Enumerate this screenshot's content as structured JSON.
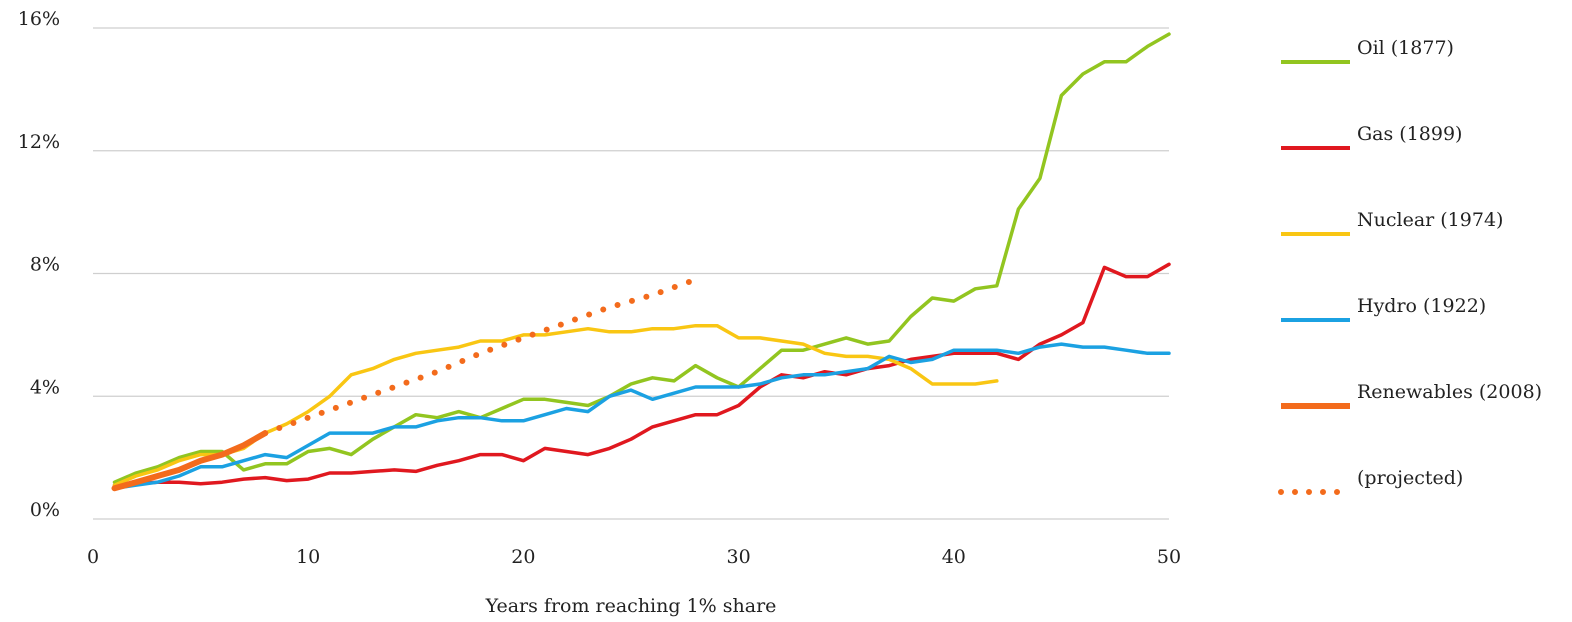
{
  "chart_data": {
    "type": "line",
    "xlabel": "Years from reaching 1% share",
    "ylabel": "",
    "xlim": [
      0,
      50
    ],
    "ylim": [
      0,
      16
    ],
    "x_ticks": [
      "0",
      "10",
      "20",
      "30",
      "40",
      "50"
    ],
    "y_ticks": [
      "0%",
      "4%",
      "8%",
      "12%",
      "16%"
    ],
    "grid": "horizontal",
    "legend_position": "right",
    "series": [
      {
        "name": "Oil (1877)",
        "color": "#92C520",
        "style": "solid",
        "x": [
          1,
          2,
          3,
          4,
          5,
          6,
          7,
          8,
          9,
          10,
          11,
          12,
          13,
          14,
          15,
          16,
          17,
          18,
          19,
          20,
          21,
          22,
          23,
          24,
          25,
          26,
          27,
          28,
          29,
          30,
          31,
          32,
          33,
          34,
          35,
          36,
          37,
          38,
          39,
          40,
          41,
          42,
          43,
          44,
          45,
          46,
          47,
          48,
          49,
          50
        ],
        "y": [
          1.2,
          1.5,
          1.7,
          2.0,
          2.2,
          2.2,
          1.6,
          1.8,
          1.8,
          2.2,
          2.3,
          2.1,
          2.6,
          3.0,
          3.4,
          3.3,
          3.5,
          3.3,
          3.6,
          3.9,
          3.9,
          3.8,
          3.7,
          4.0,
          4.4,
          4.6,
          4.5,
          5.0,
          4.6,
          4.3,
          4.9,
          5.5,
          5.5,
          5.7,
          5.9,
          5.7,
          5.8,
          6.6,
          7.2,
          7.1,
          7.5,
          7.6,
          10.1,
          11.1,
          13.8,
          14.5,
          14.9,
          14.9,
          15.4,
          15.8
        ]
      },
      {
        "name": "Gas (1899)",
        "color": "#E0181F",
        "style": "solid",
        "x": [
          1,
          2,
          3,
          4,
          5,
          6,
          7,
          8,
          9,
          10,
          11,
          12,
          13,
          14,
          15,
          16,
          17,
          18,
          19,
          20,
          21,
          22,
          23,
          24,
          25,
          26,
          27,
          28,
          29,
          30,
          31,
          32,
          33,
          34,
          35,
          36,
          37,
          38,
          39,
          40,
          41,
          42,
          43,
          44,
          45,
          46,
          47,
          48,
          49,
          50
        ],
        "y": [
          1.1,
          1.15,
          1.2,
          1.2,
          1.15,
          1.2,
          1.3,
          1.35,
          1.25,
          1.3,
          1.5,
          1.5,
          1.55,
          1.6,
          1.55,
          1.75,
          1.9,
          2.1,
          2.1,
          1.9,
          2.3,
          2.2,
          2.1,
          2.3,
          2.6,
          3.0,
          3.2,
          3.4,
          3.4,
          3.7,
          4.3,
          4.7,
          4.6,
          4.8,
          4.7,
          4.9,
          5.0,
          5.2,
          5.3,
          5.4,
          5.4,
          5.4,
          5.2,
          5.7,
          6.0,
          6.4,
          8.2,
          7.9,
          7.9,
          8.3
        ]
      },
      {
        "name": "Nuclear (1974)",
        "color": "#F9C613",
        "style": "solid",
        "x": [
          1,
          2,
          3,
          4,
          5,
          6,
          7,
          8,
          9,
          10,
          11,
          12,
          13,
          14,
          15,
          16,
          17,
          18,
          19,
          20,
          21,
          22,
          23,
          24,
          25,
          26,
          27,
          28,
          29,
          30,
          31,
          32,
          33,
          34,
          35,
          36,
          37,
          38,
          39,
          40,
          41,
          42
        ],
        "y": [
          1.1,
          1.4,
          1.6,
          1.9,
          2.1,
          2.1,
          2.3,
          2.8,
          3.1,
          3.5,
          4.0,
          4.7,
          4.9,
          5.2,
          5.4,
          5.5,
          5.6,
          5.8,
          5.8,
          6.0,
          6.0,
          6.1,
          6.2,
          6.1,
          6.1,
          6.2,
          6.2,
          6.3,
          6.3,
          5.9,
          5.9,
          5.8,
          5.7,
          5.4,
          5.3,
          5.3,
          5.2,
          4.9,
          4.4,
          4.4,
          4.4,
          4.5
        ]
      },
      {
        "name": "Hydro (1922)",
        "color": "#1BA1E2",
        "style": "solid",
        "x": [
          1,
          2,
          3,
          4,
          5,
          6,
          7,
          8,
          9,
          10,
          11,
          12,
          13,
          14,
          15,
          16,
          17,
          18,
          19,
          20,
          21,
          22,
          23,
          24,
          25,
          26,
          27,
          28,
          29,
          30,
          31,
          32,
          33,
          34,
          35,
          36,
          37,
          38,
          39,
          40,
          41,
          42,
          43,
          44,
          45,
          46,
          47,
          48,
          49,
          50
        ],
        "y": [
          1.0,
          1.1,
          1.2,
          1.4,
          1.7,
          1.7,
          1.9,
          2.1,
          2.0,
          2.4,
          2.8,
          2.8,
          2.8,
          3.0,
          3.0,
          3.2,
          3.3,
          3.3,
          3.2,
          3.2,
          3.4,
          3.6,
          3.5,
          4.0,
          4.2,
          3.9,
          4.1,
          4.3,
          4.3,
          4.3,
          4.4,
          4.6,
          4.7,
          4.7,
          4.8,
          4.9,
          5.3,
          5.1,
          5.2,
          5.5,
          5.5,
          5.5,
          5.4,
          5.6,
          5.7,
          5.6,
          5.6,
          5.5,
          5.4,
          5.4
        ]
      },
      {
        "name": "Renewables (2008)",
        "color": "#F36B1C",
        "style": "solid-thick",
        "x": [
          1,
          2,
          3,
          4,
          5,
          6,
          7,
          8
        ],
        "y": [
          1.0,
          1.2,
          1.4,
          1.6,
          1.9,
          2.1,
          2.4,
          2.8
        ]
      },
      {
        "name": "(projected)",
        "color": "#F36B1C",
        "style": "dotted",
        "x": [
          8,
          10,
          12,
          14,
          16,
          18,
          20,
          22,
          24,
          26,
          28
        ],
        "y": [
          2.8,
          3.3,
          3.8,
          4.3,
          4.8,
          5.4,
          5.9,
          6.4,
          6.9,
          7.3,
          7.8
        ]
      }
    ]
  }
}
